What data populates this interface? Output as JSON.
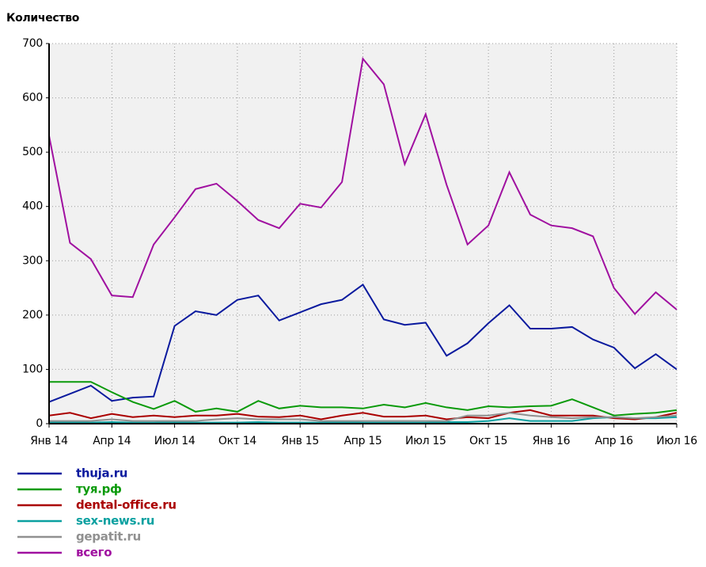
{
  "chart_data": {
    "type": "line",
    "title": "Количество",
    "categories": [
      "Янв 14",
      null,
      null,
      "Апр 14",
      null,
      null,
      "Июл 14",
      null,
      null,
      "Окт 14",
      null,
      null,
      "Янв 15",
      null,
      null,
      "Апр 15",
      null,
      null,
      "Июл 15",
      null,
      null,
      "Окт 15",
      null,
      null,
      "Янв 16",
      null,
      null,
      "Апр 16",
      null,
      null,
      "Июл 16"
    ],
    "series": [
      {
        "name": "thuja.ru",
        "color": "#0a1a9e",
        "values": [
          40,
          55,
          70,
          42,
          48,
          50,
          180,
          207,
          200,
          228,
          236,
          190,
          205,
          220,
          228,
          256,
          192,
          182,
          186,
          125,
          148,
          185,
          218,
          175,
          175,
          178,
          155,
          140,
          102,
          128,
          100
        ]
      },
      {
        "name": "туя.рф",
        "color": "#0a9a0a",
        "values": [
          77,
          77,
          77,
          58,
          40,
          27,
          42,
          22,
          28,
          22,
          42,
          28,
          33,
          30,
          30,
          28,
          35,
          30,
          38,
          30,
          25,
          32,
          30,
          32,
          33,
          45,
          30,
          15,
          18,
          20,
          25
        ]
      },
      {
        "name": "dental-office.ru",
        "color": "#aa0000",
        "values": [
          15,
          20,
          10,
          18,
          12,
          15,
          12,
          15,
          15,
          18,
          13,
          12,
          15,
          8,
          15,
          20,
          13,
          13,
          15,
          8,
          12,
          10,
          20,
          25,
          15,
          15,
          15,
          10,
          8,
          12,
          20
        ]
      },
      {
        "name": "sex-news.ru",
        "color": "#0aa0a0",
        "values": [
          2,
          3,
          2,
          3,
          2,
          2,
          3,
          2,
          2,
          2,
          3,
          2,
          2,
          2,
          3,
          2,
          2,
          2,
          2,
          3,
          3,
          5,
          10,
          5,
          5,
          5,
          10,
          12,
          10,
          10,
          12
        ]
      },
      {
        "name": "gepatit.ru",
        "color": "#909090",
        "values": [
          5,
          5,
          5,
          8,
          5,
          5,
          5,
          5,
          8,
          10,
          8,
          8,
          8,
          5,
          5,
          5,
          5,
          5,
          5,
          5,
          15,
          15,
          20,
          15,
          12,
          10,
          12,
          12,
          10,
          12,
          15
        ]
      },
      {
        "name": "всего",
        "color": "#a010a0",
        "values": [
          530,
          333,
          303,
          236,
          233,
          330,
          380,
          432,
          442,
          410,
          375,
          360,
          405,
          398,
          445,
          672,
          625,
          478,
          570,
          440,
          330,
          365,
          463,
          385,
          365,
          360,
          345,
          250,
          202,
          242,
          210
        ]
      }
    ],
    "ylim": [
      0,
      700
    ],
    "yticks": [
      0,
      100,
      200,
      300,
      400,
      500,
      600,
      700
    ],
    "grid": true
  }
}
